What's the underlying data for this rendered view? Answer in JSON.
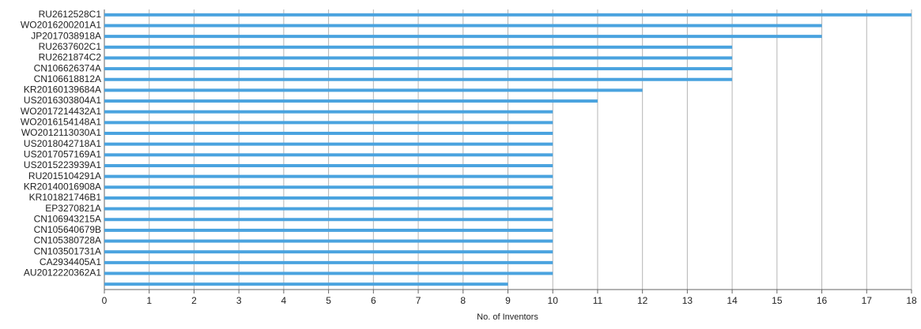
{
  "chart_data": {
    "type": "bar",
    "orientation": "horizontal",
    "x_label": "No. of Inventors",
    "categories": [
      "RU2612528C1",
      "WO2016200201A1",
      "JP2017038918A",
      "RU2637602C1",
      "RU2621874C2",
      "CN106626374A",
      "CN106618812A",
      "KR20160139684A",
      "US2016303804A1",
      "WO2017214432A1",
      "WO2016154148A1",
      "WO2012113030A1",
      "US2018042718A1",
      "US2017057169A1",
      "US2015223939A1",
      "RU2015104291A",
      "KR20140016908A",
      "KR101821746B1",
      "EP3270821A",
      "CN106943215A",
      "CN105640679B",
      "CN105380728A",
      "CN103501731A",
      "CA2934405A1",
      "AU2012220362A1",
      null
    ],
    "values": [
      18,
      16,
      16,
      14,
      14,
      14,
      14,
      12,
      11,
      10,
      10,
      10,
      10,
      10,
      10,
      10,
      10,
      10,
      10,
      10,
      10,
      10,
      10,
      10,
      10,
      9
    ],
    "color": "#4aa3df",
    "xlim": [
      0,
      18
    ],
    "xticks": [
      0,
      1,
      2,
      3,
      4,
      5,
      6,
      7,
      8,
      9,
      10,
      11,
      12,
      13,
      14,
      15,
      16,
      17,
      18
    ],
    "grid": true
  }
}
